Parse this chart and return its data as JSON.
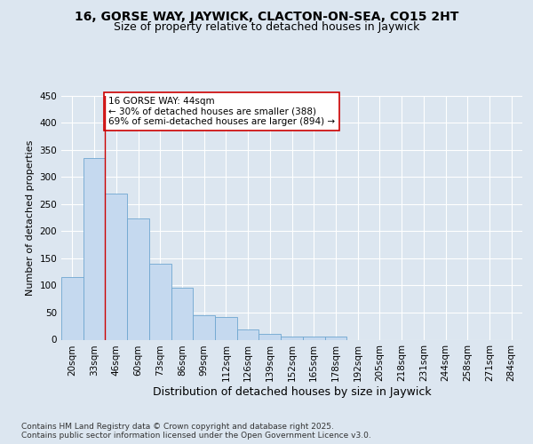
{
  "title": "16, GORSE WAY, JAYWICK, CLACTON-ON-SEA, CO15 2HT",
  "subtitle": "Size of property relative to detached houses in Jaywick",
  "xlabel": "Distribution of detached houses by size in Jaywick",
  "ylabel": "Number of detached properties",
  "categories": [
    "20sqm",
    "33sqm",
    "46sqm",
    "60sqm",
    "73sqm",
    "86sqm",
    "99sqm",
    "112sqm",
    "126sqm",
    "139sqm",
    "152sqm",
    "165sqm",
    "178sqm",
    "192sqm",
    "205sqm",
    "218sqm",
    "231sqm",
    "244sqm",
    "258sqm",
    "271sqm",
    "284sqm"
  ],
  "values": [
    115,
    335,
    270,
    224,
    140,
    95,
    45,
    41,
    19,
    10,
    6,
    5,
    6,
    0,
    0,
    0,
    0,
    0,
    0,
    0,
    0
  ],
  "bar_color": "#c5d9ef",
  "bar_edge_color": "#6ea6d0",
  "vline_x": 1.5,
  "vline_color": "#cc0000",
  "annotation_text": "16 GORSE WAY: 44sqm\n← 30% of detached houses are smaller (388)\n69% of semi-detached houses are larger (894) →",
  "annotation_box_color": "#ffffff",
  "annotation_box_edge": "#cc0000",
  "background_color": "#dce6f0",
  "plot_bg_color": "#dce6f0",
  "grid_color": "#ffffff",
  "ylim": [
    0,
    450
  ],
  "yticks": [
    0,
    50,
    100,
    150,
    200,
    250,
    300,
    350,
    400,
    450
  ],
  "footer": "Contains HM Land Registry data © Crown copyright and database right 2025.\nContains public sector information licensed under the Open Government Licence v3.0.",
  "title_fontsize": 10,
  "subtitle_fontsize": 9,
  "xlabel_fontsize": 9,
  "ylabel_fontsize": 8,
  "tick_fontsize": 7.5,
  "annotation_fontsize": 7.5,
  "footer_fontsize": 6.5
}
